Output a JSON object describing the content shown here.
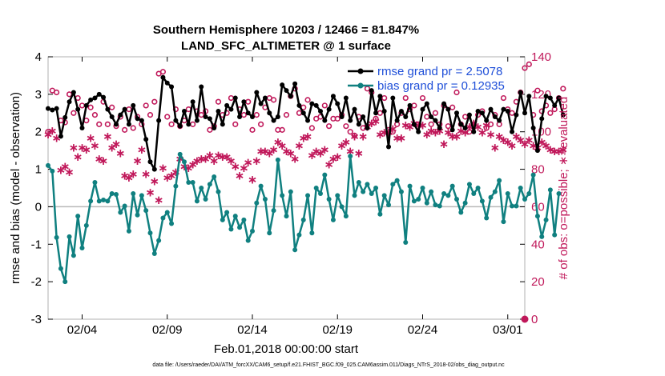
{
  "chart_data": {
    "type": "line",
    "title_line1": "Southern Hemisphere 10203 / 12466 = 81.847%",
    "title_line2": "LAND_SFC_ALTIMETER @ 1 surface",
    "xlabel": "Feb.01,2018 00:00:00 start",
    "ylabel_left": "rmse and bias (model - observation)",
    "ylabel_right": "# of obs: o=possible; ∗=evaluated",
    "footer": "data file: /Users/raeder/DAI/ATM_forcXX/CAM6_setup/f.e21.FHIST_BGC.f09_025.CAM6assim.011/Diags_NTrS_2018-02/obs_diag_output.nc",
    "xlim": [
      1,
      29
    ],
    "ylim_left": [
      -3,
      4
    ],
    "ylim_right": [
      0,
      140
    ],
    "x_ticks": [
      3,
      8,
      13,
      18,
      23,
      28
    ],
    "x_tick_labels": [
      "02/04",
      "02/09",
      "02/14",
      "02/19",
      "02/24",
      "03/01"
    ],
    "y_ticks_left": [
      "-3",
      "-2",
      "-1",
      "0",
      "1",
      "2",
      "3",
      "4"
    ],
    "y_ticks_right": [
      "0",
      "20",
      "40",
      "60",
      "80",
      "100",
      "120",
      "140"
    ],
    "legend": [
      {
        "label": "rmse grand pr = 2.5078",
        "color": "#000000"
      },
      {
        "label": "bias grand pr = 0.12935",
        "color": "#108080"
      }
    ],
    "colors": {
      "rmse": "#000000",
      "bias": "#108080",
      "obs": "#c0185a",
      "zero_line": "#b8b8b8"
    },
    "series": [
      {
        "name": "rmse",
        "x_start": 1.0,
        "x_step": 0.25,
        "values": [
          2.62,
          2.58,
          2.62,
          1.88,
          2.38,
          2.8,
          3.05,
          2.6,
          2.1,
          2.7,
          2.85,
          2.9,
          3.0,
          2.92,
          2.6,
          2.4,
          2.2,
          2.45,
          2.6,
          2.2,
          2.7,
          2.35,
          2.3,
          1.8,
          1.2,
          1.0,
          2.3,
          3.45,
          3.3,
          3.2,
          2.3,
          2.15,
          2.55,
          2.2,
          2.8,
          2.3,
          3.2,
          2.4,
          2.35,
          2.1,
          2.55,
          2.2,
          2.7,
          2.6,
          2.9,
          2.4,
          2.8,
          2.5,
          2.4,
          3.05,
          2.75,
          2.9,
          2.5,
          2.3,
          2.4,
          3.25,
          3.1,
          2.95,
          3.28,
          2.7,
          2.5,
          2.3,
          2.75,
          2.7,
          2.55,
          2.3,
          2.6,
          2.95,
          2.75,
          2.4,
          2.9,
          2.3,
          2.6,
          2.2,
          2.4,
          2.1,
          3.1,
          2.5,
          2.95,
          2.55,
          1.6,
          2.9,
          2.3,
          2.55,
          2.4,
          2.7,
          2.2,
          2.0,
          2.6,
          2.75,
          2.4,
          2.3,
          2.1,
          2.75,
          2.6,
          2.05,
          2.5,
          2.2,
          2.1,
          2.45,
          2.0,
          2.55,
          2.5,
          2.3,
          2.6,
          2.4,
          2.3,
          2.6,
          2.55,
          2.0,
          2.45,
          3.05,
          2.5,
          2.95,
          2.1,
          1.5,
          2.35,
          2.95,
          2.9,
          2.7,
          2.9,
          2.45
        ],
        "unit": "model - observation"
      },
      {
        "name": "bias",
        "x_start": 1.0,
        "x_step": 0.25,
        "values": [
          1.1,
          0.95,
          -0.82,
          -1.65,
          -2.0,
          -0.8,
          -1.3,
          -0.25,
          -1.1,
          -0.5,
          0.15,
          0.65,
          0.15,
          0.18,
          0.15,
          0.35,
          0.33,
          -0.15,
          0.02,
          -0.65,
          0.35,
          -0.22,
          0.3,
          -0.1,
          -0.7,
          -1.25,
          -0.9,
          -0.3,
          -0.15,
          -0.45,
          0.55,
          1.4,
          1.2,
          0.65,
          0.65,
          0.15,
          0.5,
          0.2,
          0.6,
          0.8,
          0.4,
          -0.35,
          -0.15,
          -0.6,
          -0.25,
          -0.55,
          -0.35,
          -0.9,
          -0.65,
          0.1,
          0.55,
          0.2,
          -0.7,
          -0.1,
          1.25,
          0.3,
          -0.25,
          0.4,
          -1.15,
          -0.75,
          -0.35,
          0.3,
          -0.7,
          0.5,
          0.35,
          0.85,
          0.2,
          -0.35,
          0.3,
          0.0,
          -0.25,
          1.35,
          0.3,
          0.65,
          0.4,
          0.6,
          0.35,
          0.5,
          -0.2,
          0.3,
          0.05,
          0.6,
          0.7,
          0.4,
          -0.95,
          0.55,
          0.15,
          0.2,
          0.5,
          0.1,
          0.4,
          0.05,
          0.02,
          0.35,
          0.3,
          0.55,
          0.2,
          -0.15,
          0.1,
          0.6,
          0.35,
          0.5,
          0.15,
          -0.3,
          0.25,
          0.4,
          0.7,
          -0.4,
          0.35,
          0.02,
          0.02,
          0.5,
          0.2,
          0.35,
          0.85,
          -0.25,
          -0.8,
          -0.35,
          0.45,
          -0.75,
          0.35
        ],
        "unit": "model - observation"
      },
      {
        "name": "obs_possible",
        "x_start": 1.0,
        "x_step": 0.25,
        "values": [
          100,
          122,
          121,
          106,
          105,
          120,
          110,
          118,
          114,
          106,
          113,
          109,
          104,
          116,
          104,
          113,
          103,
          108,
          101,
          112,
          102,
          108,
          104,
          114,
          109,
          116,
          131,
          132,
          108,
          104,
          112,
          103,
          106,
          112,
          104,
          111,
          109,
          111,
          101,
          103,
          116,
          109,
          110,
          118,
          104,
          112,
          109,
          116,
          101,
          109,
          104,
          113,
          118,
          117,
          101,
          101,
          109,
          119,
          123,
          110,
          113,
          117,
          102,
          107,
          108,
          114,
          103,
          107,
          107,
          109,
          103,
          100,
          98,
          108,
          102,
          123,
          121,
          107,
          110,
          118,
          101,
          100,
          104,
          110,
          118,
          112,
          114,
          104,
          118,
          108,
          104,
          110,
          104,
          114,
          103,
          113,
          121,
          104,
          108,
          100,
          104,
          109,
          111,
          102,
          104,
          109,
          104,
          118,
          112,
          110,
          116,
          121,
          134,
          136,
          109,
          122,
          111,
          114,
          110,
          112,
          118,
          123
        ],
        "unit": "count"
      },
      {
        "name": "obs_evaluated",
        "x_start": 1.0,
        "x_step": 0.25,
        "values": [
          99,
          101,
          97,
          80,
          82,
          79,
          92,
          87,
          92,
          91,
          97,
          93,
          86,
          85,
          98,
          92,
          94,
          89,
          77,
          76,
          78,
          85,
          91,
          78,
          68,
          74,
          64,
          81,
          76,
          77,
          79,
          86,
          82,
          81,
          83,
          85,
          86,
          86,
          88,
          85,
          88,
          87,
          87,
          85,
          82,
          77,
          81,
          84,
          75,
          85,
          90,
          90,
          89,
          91,
          95,
          93,
          90,
          89,
          86,
          93,
          97,
          98,
          88,
          90,
          89,
          91,
          83,
          86,
          87,
          93,
          95,
          90,
          98,
          89,
          98,
          103,
          105,
          106,
          99,
          100,
          100,
          102,
          97,
          97,
          104,
          103,
          105,
          104,
          104,
          99,
          101,
          100,
          101,
          94,
          100,
          98,
          98,
          101,
          100,
          103,
          105,
          103,
          100,
          104,
          99,
          92,
          98,
          96,
          95,
          93,
          98,
          96,
          94,
          96,
          93,
          92,
          95,
          93,
          91,
          90,
          90,
          91
        ],
        "unit": "count"
      }
    ]
  }
}
